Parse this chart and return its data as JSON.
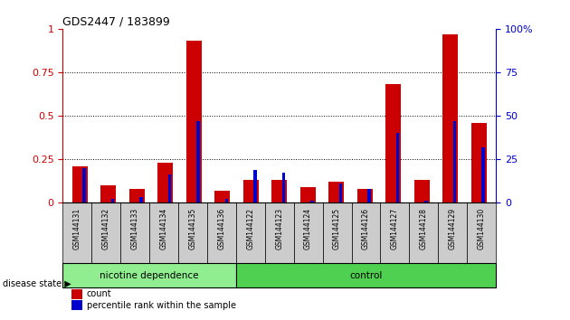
{
  "title": "GDS2447 / 183899",
  "samples": [
    "GSM144131",
    "GSM144132",
    "GSM144133",
    "GSM144134",
    "GSM144135",
    "GSM144136",
    "GSM144122",
    "GSM144123",
    "GSM144124",
    "GSM144125",
    "GSM144126",
    "GSM144127",
    "GSM144128",
    "GSM144129",
    "GSM144130"
  ],
  "count_values": [
    0.21,
    0.1,
    0.08,
    0.23,
    0.93,
    0.07,
    0.13,
    0.13,
    0.09,
    0.12,
    0.08,
    0.68,
    0.13,
    0.97,
    0.46
  ],
  "percentile_values": [
    0.2,
    0.02,
    0.03,
    0.16,
    0.47,
    0.02,
    0.19,
    0.17,
    0.01,
    0.11,
    0.08,
    0.4,
    0.01,
    0.47,
    0.32
  ],
  "count_color": "#cc0000",
  "percentile_color": "#0000cc",
  "ylim": [
    0,
    1.0
  ],
  "y2lim": [
    0,
    100
  ],
  "yticks": [
    0,
    0.25,
    0.5,
    0.75,
    1.0
  ],
  "y2ticks": [
    0,
    25,
    50,
    75,
    100
  ],
  "ytick_labels": [
    "0",
    "0.25",
    "0.5",
    "0.75",
    "1"
  ],
  "y2tick_labels": [
    "0",
    "25",
    "50",
    "75",
    "100%"
  ],
  "groups": [
    {
      "label": "nicotine dependence",
      "start": 0,
      "end": 6,
      "color": "#90ee90"
    },
    {
      "label": "control",
      "start": 6,
      "end": 15,
      "color": "#50d050"
    }
  ],
  "group_label": "disease state",
  "legend_items": [
    {
      "label": "count",
      "color": "#cc0000"
    },
    {
      "label": "percentile rank within the sample",
      "color": "#0000cc"
    }
  ],
  "background_color": "#ffffff",
  "tick_label_color_left": "#cc0000",
  "tick_label_color_right": "#0000cc",
  "xticklabel_bg": "#cccccc"
}
